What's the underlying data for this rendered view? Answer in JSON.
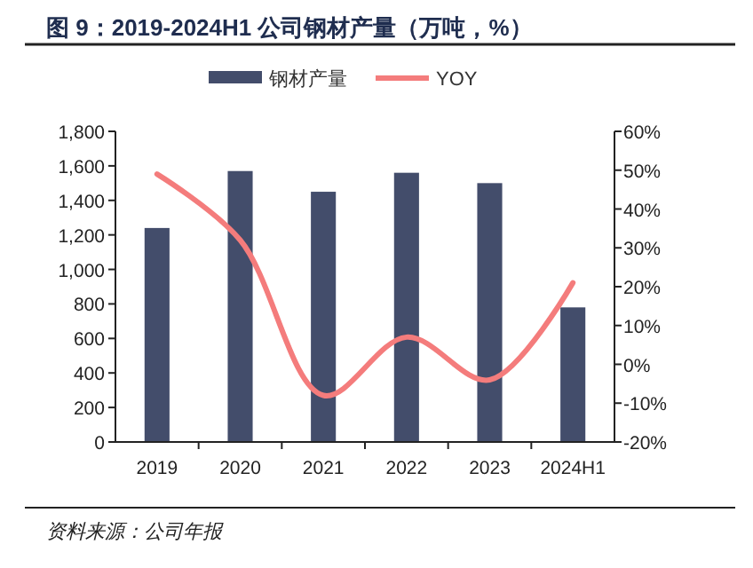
{
  "chart_data": {
    "type": "bar",
    "title": "图 9：2019-2024H1 公司钢材产量（万吨，%）",
    "categories": [
      "2019",
      "2020",
      "2021",
      "2022",
      "2023",
      "2024H1"
    ],
    "series": [
      {
        "name": "钢材产量",
        "color": "#434d6b",
        "values": [
          1240,
          1570,
          1450,
          1560,
          1500,
          780
        ]
      },
      {
        "name": "YOY",
        "type": "line",
        "axis": "y2",
        "color": "#f47c7c",
        "values": [
          49,
          32,
          -8,
          7,
          -4,
          21
        ]
      }
    ],
    "ylim": [
      0,
      1800
    ],
    "yticks": [
      {
        "value": 0,
        "label": "0"
      },
      {
        "value": 200,
        "label": "200"
      },
      {
        "value": 400,
        "label": "400"
      },
      {
        "value": 600,
        "label": "600"
      },
      {
        "value": 800,
        "label": "800"
      },
      {
        "value": 1000,
        "label": "1,000"
      },
      {
        "value": 1200,
        "label": "1,200"
      },
      {
        "value": 1400,
        "label": "1,400"
      },
      {
        "value": 1600,
        "label": "1,600"
      },
      {
        "value": 1800,
        "label": "1,800"
      }
    ],
    "y2lim": [
      -20,
      60
    ],
    "y2ticks": [
      {
        "value": -20,
        "label": "-20%"
      },
      {
        "value": -10,
        "label": "-10%"
      },
      {
        "value": 0,
        "label": "0%"
      },
      {
        "value": 10,
        "label": "10%"
      },
      {
        "value": 20,
        "label": "20%"
      },
      {
        "value": 30,
        "label": "30%"
      },
      {
        "value": 40,
        "label": "40%"
      },
      {
        "value": 50,
        "label": "50%"
      },
      {
        "value": 60,
        "label": "60%"
      }
    ],
    "legend": "top",
    "grid": false,
    "annotations": [
      "资料来源：公司年报"
    ]
  }
}
